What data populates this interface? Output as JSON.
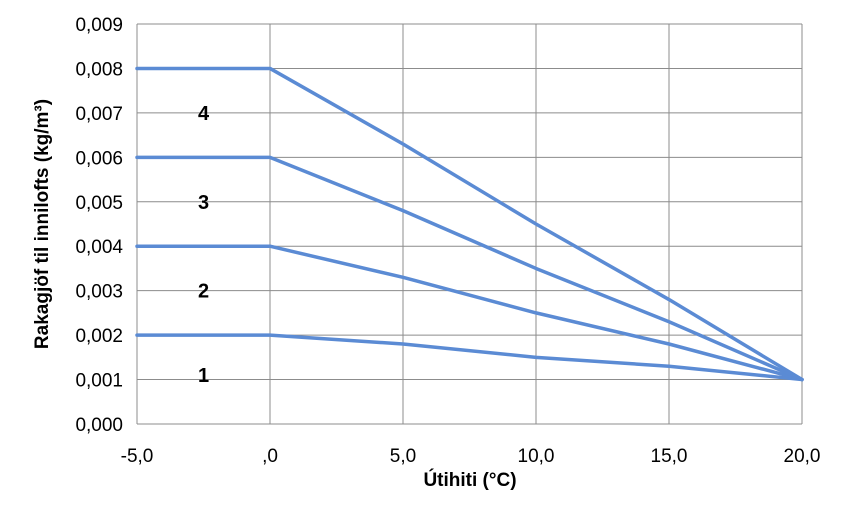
{
  "chart_data": {
    "type": "line",
    "title": "",
    "xlabel": "Útihiti (°C)",
    "ylabel": "Rakagjöf til innilofts (kg/m³)",
    "xlim": [
      -5,
      20
    ],
    "ylim": [
      0,
      0.009
    ],
    "x_ticks": [
      -5,
      0,
      5,
      10,
      15,
      20
    ],
    "x_tick_labels": [
      "-5,0",
      ",0",
      "5,0",
      "10,0",
      "15,0",
      "20,0"
    ],
    "y_ticks": [
      0,
      0.001,
      0.002,
      0.003,
      0.004,
      0.005,
      0.006,
      0.007,
      0.008,
      0.009
    ],
    "y_tick_labels": [
      "0,000",
      "0,001",
      "0,002",
      "0,003",
      "0,004",
      "0,005",
      "0,006",
      "0,007",
      "0,008",
      "0,009"
    ],
    "grid": true,
    "line_color": "#5b8bd4",
    "series": [
      {
        "x": [
          -5,
          0,
          5,
          10,
          15,
          20
        ],
        "values": [
          0.002,
          0.002,
          0.0018,
          0.0015,
          0.0013,
          0.001
        ]
      },
      {
        "x": [
          -5,
          0,
          5,
          10,
          15,
          20
        ],
        "values": [
          0.004,
          0.004,
          0.0033,
          0.0025,
          0.0018,
          0.001
        ]
      },
      {
        "x": [
          -5,
          0,
          5,
          10,
          15,
          20
        ],
        "values": [
          0.006,
          0.006,
          0.0048,
          0.0035,
          0.0023,
          0.001
        ]
      },
      {
        "x": [
          -5,
          0,
          5,
          10,
          15,
          20
        ],
        "values": [
          0.008,
          0.008,
          0.0063,
          0.0045,
          0.0028,
          0.001
        ]
      }
    ],
    "region_labels": [
      {
        "text": "1",
        "x": -2.5,
        "y": 0.0011
      },
      {
        "text": "2",
        "x": -2.5,
        "y": 0.003
      },
      {
        "text": "3",
        "x": -2.5,
        "y": 0.005
      },
      {
        "text": "4",
        "x": -2.5,
        "y": 0.007
      }
    ]
  }
}
